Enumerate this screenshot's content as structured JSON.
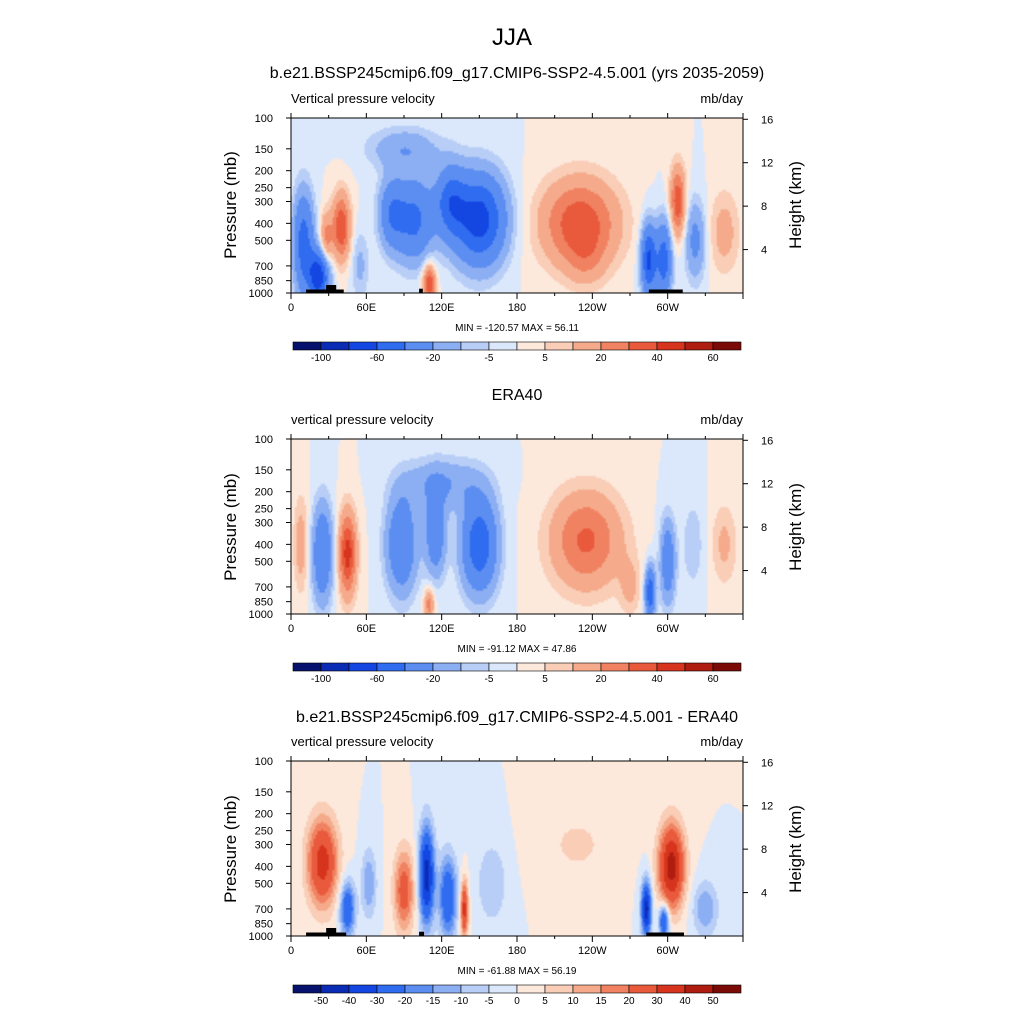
{
  "figure_title": "JJA",
  "colors": {
    "zero_boundary": "#ffe9dc",
    "terrain": "#000000"
  },
  "chart_data": [
    {
      "type": "heatmap",
      "title": "b.e21.BSSP245cmip6.f09_g17.CMIP6-SSP2-4.5.001 (yrs 2035-2059)",
      "left_label": "Vertical pressure velocity",
      "right_label": "mb/day",
      "ylabel": "Pressure (mb)",
      "ylabel_right": "Height (km)",
      "x_ticks": [
        "0",
        "60E",
        "120E",
        "180",
        "120W",
        "60W"
      ],
      "y_ticks": [
        "100",
        "150",
        "200",
        "250",
        "300",
        "400",
        "500",
        "700",
        "850",
        "1000"
      ],
      "y_ticks_right": [
        "16",
        "12",
        "8",
        "4"
      ],
      "stats": "MIN = -120.57  MAX =  56.11",
      "colorbar_labels": [
        "-100",
        "-60",
        "-20",
        "-5",
        "5",
        "20",
        "40",
        "60"
      ],
      "colorbar_colors": [
        "#06126b",
        "#0a2cb4",
        "#1446e2",
        "#2f6cf0",
        "#5c8ef2",
        "#8caff3",
        "#b8cef7",
        "#dbe8fb",
        "#fde8dc",
        "#f9cdb6",
        "#f5ab8b",
        "#f08262",
        "#e95a3d",
        "#d6341d",
        "#ae1d10",
        "#7a0b07"
      ],
      "levels": [
        -100,
        -80,
        -60,
        -40,
        -20,
        -10,
        -5,
        0,
        5,
        10,
        20,
        30,
        40,
        50,
        60
      ],
      "x_range_deg": [
        0,
        360
      ],
      "y_range_mb": [
        1000,
        100
      ],
      "features": [
        {
          "lon": 10,
          "p": 520,
          "rx": 8,
          "ry": 3.6,
          "amp": -50
        },
        {
          "lon": 22,
          "p": 800,
          "rx": 8,
          "ry": 1.8,
          "amp": -75
        },
        {
          "lon": 40,
          "p": 420,
          "rx": 7,
          "ry": 2.4,
          "amp": 40
        },
        {
          "lon": 28,
          "p": 500,
          "rx": 5,
          "ry": 2.0,
          "amp": 25
        },
        {
          "lon": 55,
          "p": 700,
          "rx": 7,
          "ry": 2.5,
          "amp": -12
        },
        {
          "lon": 80,
          "p": 350,
          "rx": 10,
          "ry": 2.5,
          "amp": -35
        },
        {
          "lon": 98,
          "p": 380,
          "rx": 15,
          "ry": 3.0,
          "amp": -45
        },
        {
          "lon": 150,
          "p": 380,
          "rx": 20,
          "ry": 3.2,
          "amp": -70
        },
        {
          "lon": 127,
          "p": 300,
          "rx": 12,
          "ry": 2.5,
          "amp": -45
        },
        {
          "lon": 90,
          "p": 150,
          "rx": 28,
          "ry": 1.5,
          "amp": -18
        },
        {
          "lon": 110,
          "p": 880,
          "rx": 5,
          "ry": 1.4,
          "amp": 40
        },
        {
          "lon": 230,
          "p": 400,
          "rx": 30,
          "ry": 3.2,
          "amp": 38
        },
        {
          "lon": 235,
          "p": 650,
          "rx": 15,
          "ry": 2.0,
          "amp": 10
        },
        {
          "lon": 285,
          "p": 650,
          "rx": 6,
          "ry": 2.5,
          "amp": -65
        },
        {
          "lon": 297,
          "p": 650,
          "rx": 6,
          "ry": 2.8,
          "amp": -50
        },
        {
          "lon": 308,
          "p": 300,
          "rx": 6,
          "ry": 2.5,
          "amp": 38
        },
        {
          "lon": 322,
          "p": 500,
          "rx": 8,
          "ry": 2.8,
          "amp": -25
        },
        {
          "lon": 345,
          "p": 450,
          "rx": 12,
          "ry": 3.0,
          "amp": 14
        }
      ],
      "terrain": [
        {
          "lon0": 12,
          "lon1": 42,
          "p": 955
        },
        {
          "lon0": 28,
          "lon1": 36,
          "p": 900
        },
        {
          "lon0": 102,
          "lon1": 105,
          "p": 945
        },
        {
          "lon0": 285,
          "lon1": 312,
          "p": 955
        }
      ]
    },
    {
      "type": "heatmap",
      "title": "ERA40",
      "left_label": "vertical pressure velocity",
      "right_label": "mb/day",
      "ylabel": "Pressure (mb)",
      "ylabel_right": "Height (km)",
      "x_ticks": [
        "0",
        "60E",
        "120E",
        "180",
        "120W",
        "60W"
      ],
      "y_ticks": [
        "100",
        "150",
        "200",
        "250",
        "300",
        "400",
        "500",
        "700",
        "850",
        "1000"
      ],
      "y_ticks_right": [
        "16",
        "12",
        "8",
        "4"
      ],
      "stats": "MIN = -91.12  MAX =  47.86",
      "colorbar_labels": [
        "-100",
        "-60",
        "-20",
        "-5",
        "5",
        "20",
        "40",
        "60"
      ],
      "colorbar_colors": [
        "#06126b",
        "#0a2cb4",
        "#1446e2",
        "#2f6cf0",
        "#5c8ef2",
        "#8caff3",
        "#b8cef7",
        "#dbe8fb",
        "#fde8dc",
        "#f9cdb6",
        "#f5ab8b",
        "#f08262",
        "#e95a3d",
        "#d6341d",
        "#ae1d10",
        "#7a0b07"
      ],
      "levels": [
        -100,
        -80,
        -60,
        -40,
        -20,
        -10,
        -5,
        0,
        5,
        10,
        20,
        30,
        40,
        50,
        60
      ],
      "x_range_deg": [
        0,
        360
      ],
      "y_range_mb": [
        1000,
        100
      ],
      "features": [
        {
          "lon": 8,
          "p": 400,
          "rx": 6,
          "ry": 3.5,
          "amp": 15
        },
        {
          "lon": 25,
          "p": 450,
          "rx": 8,
          "ry": 3.5,
          "amp": -40
        },
        {
          "lon": 45,
          "p": 450,
          "rx": 7,
          "ry": 3.0,
          "amp": 45
        },
        {
          "lon": 88,
          "p": 400,
          "rx": 12,
          "ry": 3.5,
          "amp": -40
        },
        {
          "lon": 115,
          "p": 350,
          "rx": 8,
          "ry": 3.0,
          "amp": -35
        },
        {
          "lon": 150,
          "p": 400,
          "rx": 14,
          "ry": 3.4,
          "amp": -55
        },
        {
          "lon": 120,
          "p": 180,
          "rx": 30,
          "ry": 1.8,
          "amp": -20
        },
        {
          "lon": 110,
          "p": 880,
          "rx": 4,
          "ry": 1.2,
          "amp": 25
        },
        {
          "lon": 235,
          "p": 380,
          "rx": 28,
          "ry": 3.5,
          "amp": 32
        },
        {
          "lon": 270,
          "p": 700,
          "rx": 8,
          "ry": 2.0,
          "amp": 12
        },
        {
          "lon": 286,
          "p": 750,
          "rx": 4,
          "ry": 1.8,
          "amp": -55
        },
        {
          "lon": 300,
          "p": 500,
          "rx": 6,
          "ry": 3.0,
          "amp": -35
        },
        {
          "lon": 320,
          "p": 400,
          "rx": 8,
          "ry": 3.0,
          "amp": -10
        },
        {
          "lon": 345,
          "p": 400,
          "rx": 10,
          "ry": 3.0,
          "amp": 12
        }
      ],
      "terrain": []
    },
    {
      "type": "heatmap",
      "title": "b.e21.BSSP245cmip6.f09_g17.CMIP6-SSP2-4.5.001 - ERA40",
      "left_label": "vertical pressure velocity",
      "right_label": "mb/day",
      "ylabel": "Pressure (mb)",
      "ylabel_right": "Height (km)",
      "x_ticks": [
        "0",
        "60E",
        "120E",
        "180",
        "120W",
        "60W"
      ],
      "y_ticks": [
        "100",
        "150",
        "200",
        "250",
        "300",
        "400",
        "500",
        "700",
        "850",
        "1000"
      ],
      "y_ticks_right": [
        "16",
        "12",
        "8",
        "4"
      ],
      "stats": "MIN = -61.88  MAX =  56.19",
      "colorbar_labels": [
        "-50",
        "-40",
        "-30",
        "-20",
        "-15",
        "-10",
        "-5",
        "0",
        "5",
        "10",
        "15",
        "20",
        "30",
        "40",
        "50"
      ],
      "colorbar_colors": [
        "#06126b",
        "#0a2cb4",
        "#1446e2",
        "#2f6cf0",
        "#5c8ef2",
        "#8caff3",
        "#b8cef7",
        "#dbe8fb",
        "#fde8dc",
        "#f9cdb6",
        "#f5ab8b",
        "#f08262",
        "#e95a3d",
        "#d6341d",
        "#ae1d10",
        "#7a0b07"
      ],
      "levels": [
        -50,
        -40,
        -30,
        -20,
        -15,
        -10,
        -5,
        0,
        5,
        10,
        15,
        20,
        30,
        40,
        50
      ],
      "x_range_deg": [
        0,
        360
      ],
      "y_range_mb": [
        1000,
        100
      ],
      "features": [
        {
          "lon": 25,
          "p": 380,
          "rx": 12,
          "ry": 3.2,
          "amp": 35
        },
        {
          "lon": 45,
          "p": 700,
          "rx": 6,
          "ry": 2.0,
          "amp": -30
        },
        {
          "lon": 62,
          "p": 500,
          "rx": 6,
          "ry": 2.5,
          "amp": -15
        },
        {
          "lon": 90,
          "p": 550,
          "rx": 8,
          "ry": 3.0,
          "amp": 25
        },
        {
          "lon": 108,
          "p": 450,
          "rx": 6,
          "ry": 3.5,
          "amp": -45
        },
        {
          "lon": 125,
          "p": 600,
          "rx": 7,
          "ry": 3.0,
          "amp": -30
        },
        {
          "lon": 138,
          "p": 700,
          "rx": 3,
          "ry": 2.0,
          "amp": 35
        },
        {
          "lon": 160,
          "p": 500,
          "rx": 12,
          "ry": 3.0,
          "amp": -10
        },
        {
          "lon": 228,
          "p": 300,
          "rx": 30,
          "ry": 2.8,
          "amp": 6
        },
        {
          "lon": 283,
          "p": 700,
          "rx": 4,
          "ry": 2.0,
          "amp": -45
        },
        {
          "lon": 303,
          "p": 400,
          "rx": 10,
          "ry": 3.0,
          "amp": 45
        },
        {
          "lon": 297,
          "p": 820,
          "rx": 4,
          "ry": 1.2,
          "amp": -35
        },
        {
          "lon": 330,
          "p": 700,
          "rx": 10,
          "ry": 2.0,
          "amp": -15
        }
      ],
      "terrain": [
        {
          "lon0": 12,
          "lon1": 44,
          "p": 955
        },
        {
          "lon0": 28,
          "lon1": 36,
          "p": 900
        },
        {
          "lon0": 102,
          "lon1": 106,
          "p": 945
        },
        {
          "lon0": 283,
          "lon1": 313,
          "p": 955
        }
      ]
    }
  ]
}
